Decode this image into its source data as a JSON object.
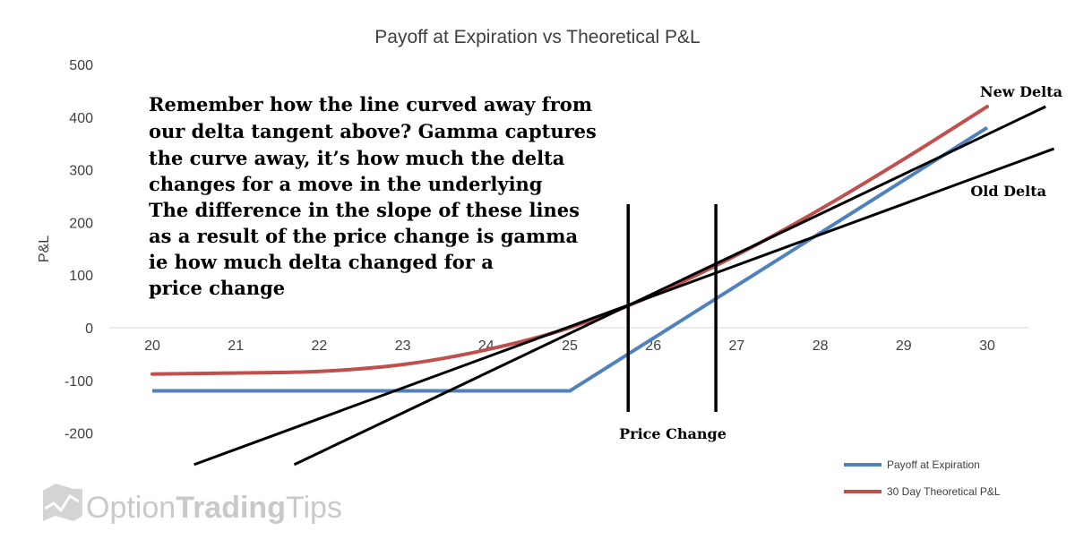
{
  "chart_data": {
    "type": "line",
    "title": "Payoff at Expiration vs Theoretical P&L",
    "ylabel": "P&L",
    "xlabel": "",
    "ylim": [
      -200,
      500
    ],
    "xlim": [
      20,
      30
    ],
    "y_ticks": [
      "500",
      "400",
      "300",
      "200",
      "100",
      "0",
      "-100",
      "-200"
    ],
    "x_ticks": [
      "20",
      "21",
      "22",
      "23",
      "24",
      "25",
      "26",
      "27",
      "28",
      "29",
      "30"
    ],
    "grid": false,
    "legend_position": "bottom-right",
    "series": [
      {
        "name": "Payoff at Expiration",
        "color": "#4f81bd",
        "x": [
          20,
          21,
          22,
          23,
          24,
          25,
          26,
          27,
          28,
          29,
          30
        ],
        "y": [
          -120,
          -120,
          -120,
          -120,
          -120,
          -120,
          -20,
          80,
          180,
          280,
          380
        ]
      },
      {
        "name": "30 Day Theoretical P&L",
        "color": "#c0504d",
        "x": [
          20,
          21,
          22,
          23,
          24,
          25,
          26,
          27,
          28,
          29,
          30
        ],
        "y": [
          -88,
          -86,
          -83,
          -70,
          -42,
          0,
          62,
          138,
          225,
          320,
          420
        ]
      }
    ],
    "tangent_lines": [
      {
        "label": "Old Delta",
        "x": [
          20.5,
          30.8
        ],
        "y": [
          -260,
          340
        ]
      },
      {
        "label": "New Delta",
        "x": [
          21.7,
          30.7
        ],
        "y": [
          -260,
          420
        ]
      }
    ],
    "price_change_lines": {
      "label": "Price Change",
      "x": [
        25.7,
        26.75
      ]
    },
    "annotation_text": [
      "Remember how the line curved away from",
      "our delta tangent above? Gamma captures",
      "the curve away, it’s how much the delta",
      "changes for a move in the underlying",
      "The difference in the slope of these lines",
      "as a result of the price change is gamma",
      "ie how much delta changed for a",
      "price change"
    ]
  },
  "watermark": {
    "part1": "Option",
    "part2": "Trading",
    "part3": "Tips"
  }
}
